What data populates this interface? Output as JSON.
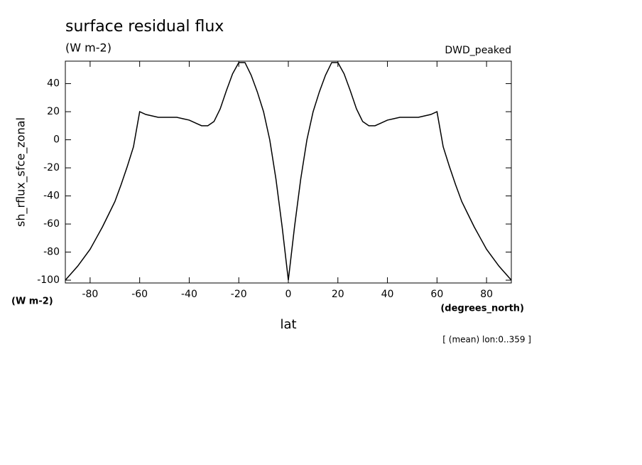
{
  "chart_data": {
    "type": "line",
    "title": "surface residual flux",
    "subtitle": "(W m-2)",
    "dataset_label": "DWD_peaked",
    "y_label": "sh_rflux_sfce_zonal",
    "y_units": "(W m-2)",
    "x_label": "lat",
    "x_units": "(degrees_north)",
    "note": "[ (mean) lon:0..359 ]",
    "x": [
      -90,
      -87.5,
      -85,
      -82.5,
      -80,
      -77.5,
      -75,
      -72.5,
      -70,
      -67.5,
      -65,
      -62.5,
      -60,
      -57.5,
      -55,
      -52.5,
      -50,
      -47.5,
      -45,
      -42.5,
      -40,
      -37.5,
      -35,
      -32.5,
      -30,
      -27.5,
      -25,
      -22.5,
      -20,
      -17.5,
      -15,
      -12.5,
      -10,
      -7.5,
      -5,
      -2.5,
      0,
      2.5,
      5,
      7.5,
      10,
      12.5,
      15,
      17.5,
      20,
      22.5,
      25,
      27.5,
      30,
      32.5,
      35,
      37.5,
      40,
      42.5,
      45,
      47.5,
      50,
      52.5,
      55,
      57.5,
      60,
      62.5,
      65,
      67.5,
      70,
      72.5,
      75,
      77.5,
      80,
      82.5,
      85,
      87.5,
      90
    ],
    "series": [
      {
        "name": "sh_rflux_sfce_zonal",
        "color": "#000000",
        "values": [
          -100,
          -95,
          -90,
          -84,
          -78,
          -70,
          -62,
          -53,
          -44,
          -32,
          -19,
          -5,
          20,
          18,
          17,
          16,
          16,
          16,
          16,
          15,
          14,
          12,
          10,
          10,
          13,
          22,
          35,
          47,
          55,
          55,
          46,
          34,
          20,
          0,
          -28,
          -62,
          -100,
          -62,
          -28,
          0,
          20,
          34,
          46,
          55,
          55,
          47,
          35,
          22,
          13,
          10,
          10,
          12,
          14,
          15,
          16,
          16,
          16,
          16,
          17,
          18,
          20,
          -5,
          -19,
          -32,
          -44,
          -53,
          -62,
          -70,
          -78,
          -84,
          -90,
          -95,
          -100
        ]
      }
    ],
    "xlim": [
      -90,
      90
    ],
    "ylim": [
      -102,
      56
    ],
    "xticks": [
      -80,
      -60,
      -40,
      -20,
      0,
      20,
      40,
      60,
      80
    ],
    "yticks": [
      -100,
      -80,
      -60,
      -40,
      -20,
      0,
      20,
      40
    ],
    "grid": false
  }
}
